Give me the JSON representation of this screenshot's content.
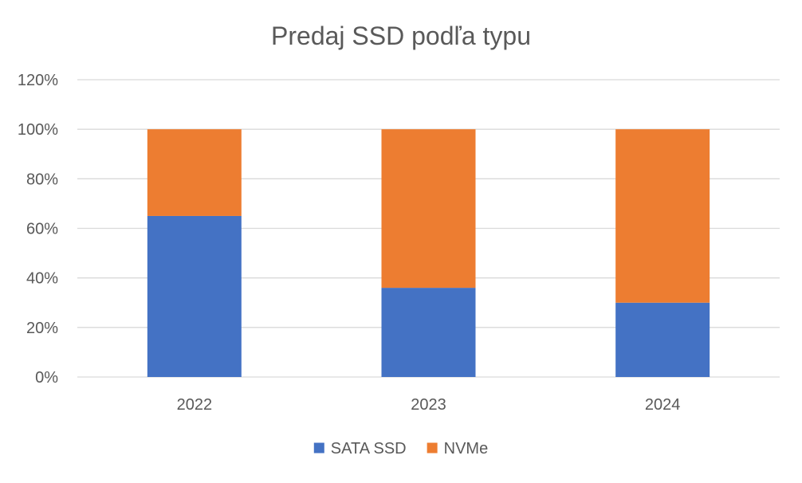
{
  "chart_data": {
    "type": "bar",
    "stacked": true,
    "title": "Predaj SSD podľa typu",
    "categories": [
      "2022",
      "2023",
      "2024"
    ],
    "series": [
      {
        "name": "SATA SSD",
        "color": "#4472C4",
        "values": [
          65,
          36,
          30
        ]
      },
      {
        "name": "NVMe",
        "color": "#ED7D31",
        "values": [
          35,
          64,
          70
        ]
      }
    ],
    "ylim": [
      0,
      120
    ],
    "y_ticks": [
      "0%",
      "20%",
      "40%",
      "60%",
      "80%",
      "100%",
      "120%"
    ],
    "grid": true,
    "legend_position": "bottom"
  }
}
